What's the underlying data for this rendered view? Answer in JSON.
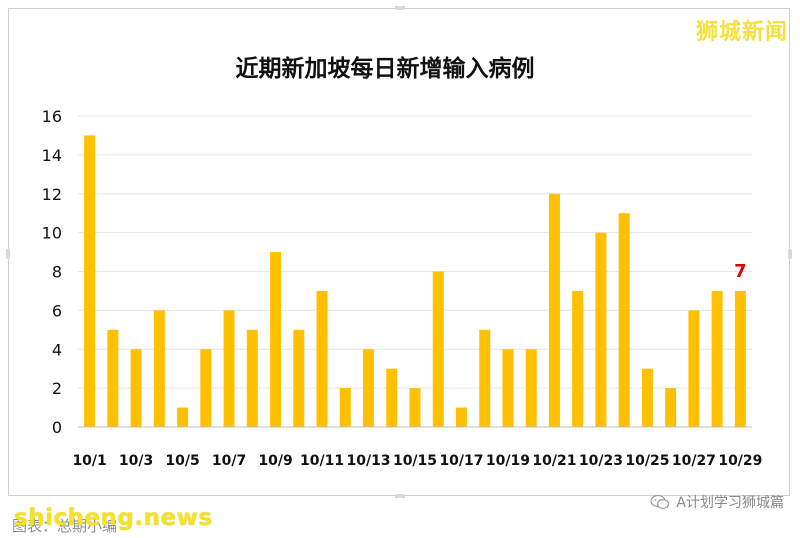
{
  "brand": "狮城新闻",
  "watermark": "shicheng.news",
  "caption": "图表：总期小编",
  "wechat_account": "A计划学习狮城篇",
  "wechat_icon": "wechat-icon",
  "colors": {
    "bar": "#ffc000",
    "highlight": "#e00000",
    "grid": "#e6e6e6"
  },
  "chart_data": {
    "type": "bar",
    "title": "近期新加坡每日新增输入病例",
    "categories": [
      "10/1",
      "10/2",
      "10/3",
      "10/4",
      "10/5",
      "10/6",
      "10/7",
      "10/8",
      "10/9",
      "10/10",
      "10/11",
      "10/12",
      "10/13",
      "10/14",
      "10/15",
      "10/16",
      "10/17",
      "10/18",
      "10/19",
      "10/20",
      "10/21",
      "10/22",
      "10/23",
      "10/24",
      "10/25",
      "10/26",
      "10/27",
      "10/28",
      "10/29"
    ],
    "tick_labels": [
      "10/1",
      "10/3",
      "10/5",
      "10/7",
      "10/9",
      "10/11",
      "10/13",
      "10/15",
      "10/17",
      "10/19",
      "10/21",
      "10/23",
      "10/25",
      "10/27",
      "10/29"
    ],
    "values": [
      15,
      5,
      4,
      6,
      1,
      4,
      6,
      5,
      9,
      5,
      7,
      2,
      4,
      3,
      2,
      8,
      1,
      5,
      4,
      4,
      12,
      7,
      10,
      11,
      3,
      2,
      6,
      7,
      7
    ],
    "ylim": [
      0,
      16
    ],
    "yticks": [
      0,
      2,
      4,
      6,
      8,
      10,
      12,
      14,
      16
    ],
    "grid": true,
    "annotation": {
      "category": "10/29",
      "text": "7"
    }
  }
}
